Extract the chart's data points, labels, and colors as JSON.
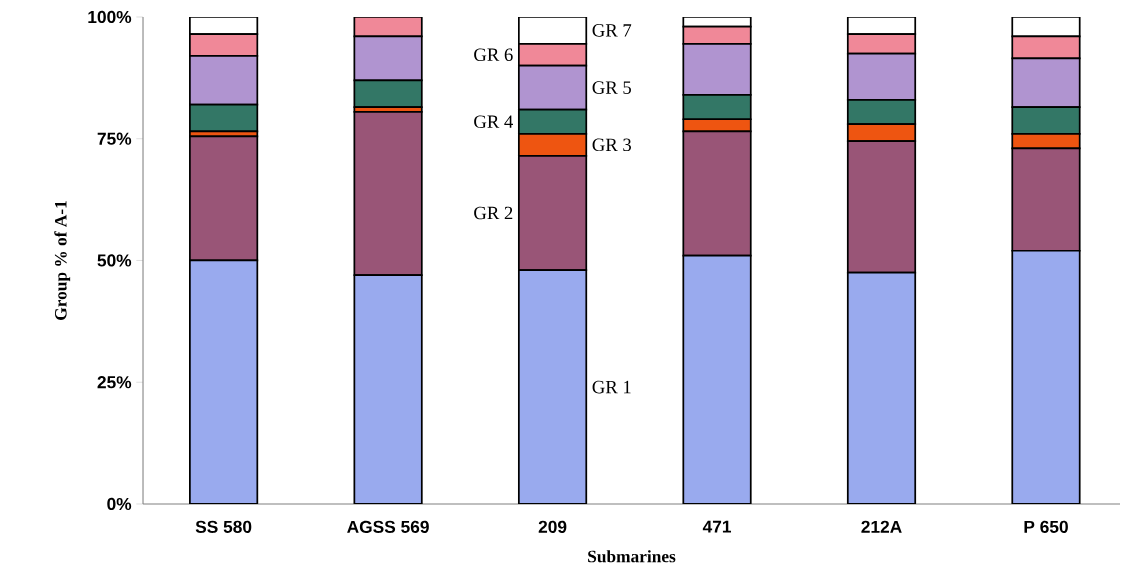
{
  "chart_data": {
    "type": "bar",
    "stacked": true,
    "xlabel": "Submarines",
    "ylabel": "Group % of A-1",
    "categories": [
      "SS 580",
      "AGSS 569",
      "209",
      "471",
      "212A",
      "P 650"
    ],
    "ylim": [
      0,
      100
    ],
    "yticks": [
      {
        "value": 0,
        "label": "0%"
      },
      {
        "value": 25,
        "label": "25%"
      },
      {
        "value": 50,
        "label": "50%"
      },
      {
        "value": 75,
        "label": "75%"
      },
      {
        "value": 100,
        "label": "100%"
      }
    ],
    "grid": false,
    "legend": false,
    "series": [
      {
        "name": "GR 1",
        "color": "#99aaee",
        "values": [
          50,
          47,
          48,
          51,
          47.5,
          52
        ]
      },
      {
        "name": "GR 2",
        "color": "#995577",
        "values": [
          25.5,
          33.5,
          23.5,
          25.5,
          27,
          21
        ]
      },
      {
        "name": "GR 3",
        "color": "#ee5511",
        "values": [
          1,
          1,
          4.5,
          2.5,
          3.5,
          3
        ]
      },
      {
        "name": "GR 4",
        "color": "#337766",
        "values": [
          5.5,
          5.5,
          5,
          5,
          5,
          5.5
        ]
      },
      {
        "name": "GR 5",
        "color": "#b094d0",
        "values": [
          10,
          9,
          9,
          10.5,
          9.5,
          10
        ]
      },
      {
        "name": "GR 6",
        "color": "#f08898",
        "values": [
          4.5,
          4,
          4.5,
          3.5,
          4,
          4.5
        ]
      },
      {
        "name": "GR 7",
        "color": "#ffffff",
        "values": [
          3.5,
          0,
          5.5,
          2,
          3.5,
          4
        ]
      }
    ]
  }
}
